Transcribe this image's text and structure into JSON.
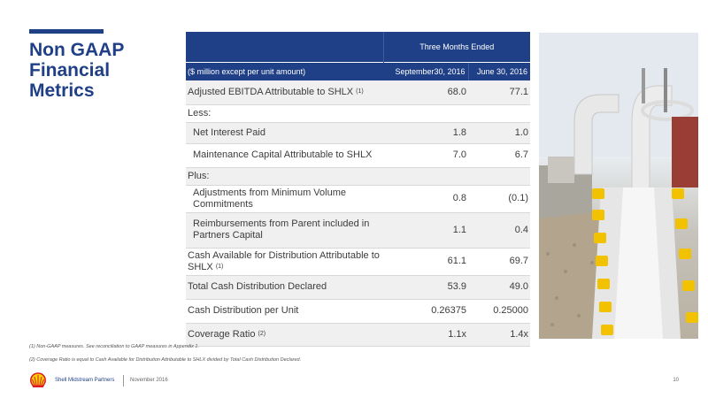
{
  "title_line1": "Non GAAP",
  "title_line2": "Financial Metrics",
  "table": {
    "period_header": "Three Months Ended",
    "units_header": "($ million except per unit amount)",
    "col1_header": "September30, 2016",
    "col2_header": "June 30, 2016",
    "rows": [
      {
        "label": "Adjusted EBITDA Attributable to SHLX",
        "note": "(1)",
        "v1": "68.0",
        "v2": "77.1"
      },
      {
        "label": "Less:",
        "note": "",
        "v1": "",
        "v2": ""
      },
      {
        "label": "Net Interest Paid",
        "note": "",
        "v1": "1.8",
        "v2": "1.0"
      },
      {
        "label": "Maintenance Capital Attributable to SHLX",
        "note": "",
        "v1": "7.0",
        "v2": "6.7"
      },
      {
        "label": "Plus:",
        "note": "",
        "v1": "",
        "v2": ""
      },
      {
        "label": "Adjustments from Minimum Volume Commitments",
        "note": "",
        "v1": "0.8",
        "v2": "(0.1)"
      },
      {
        "label": "Reimbursements from Parent included in Partners Capital",
        "note": "",
        "v1": "1.1",
        "v2": "0.4"
      },
      {
        "label": "Cash Available for Distribution Attributable to SHLX",
        "note": "(1)",
        "v1": "61.1",
        "v2": "69.7"
      },
      {
        "label": "Total Cash Distribution Declared",
        "note": "",
        "v1": "53.9",
        "v2": "49.0"
      },
      {
        "label": "Cash Distribution per Unit",
        "note": "",
        "v1": "0.26375",
        "v2": "0.25000"
      },
      {
        "label": "Coverage Ratio",
        "note": "(2)",
        "v1": "1.1x",
        "v2": "1.4x"
      }
    ]
  },
  "footnotes": {
    "fn1": "(1) Non-GAAP measures.  See reconciliation to GAAP measures in Appendix 1.",
    "fn2": "(2) Coverage Ratio is equal to Cash Available for Distribution Attributable to SHLX divided by Total Cash Distribution Declared."
  },
  "footer": {
    "brand": "Shell Midstream Partners",
    "date": "November 2016",
    "page_number": "10"
  },
  "icons": {
    "logo": "shell-logo-icon"
  },
  "colors": {
    "brand_blue": "#1f3f86",
    "shell_red": "#dd1d21",
    "shell_yellow": "#fbce07"
  }
}
